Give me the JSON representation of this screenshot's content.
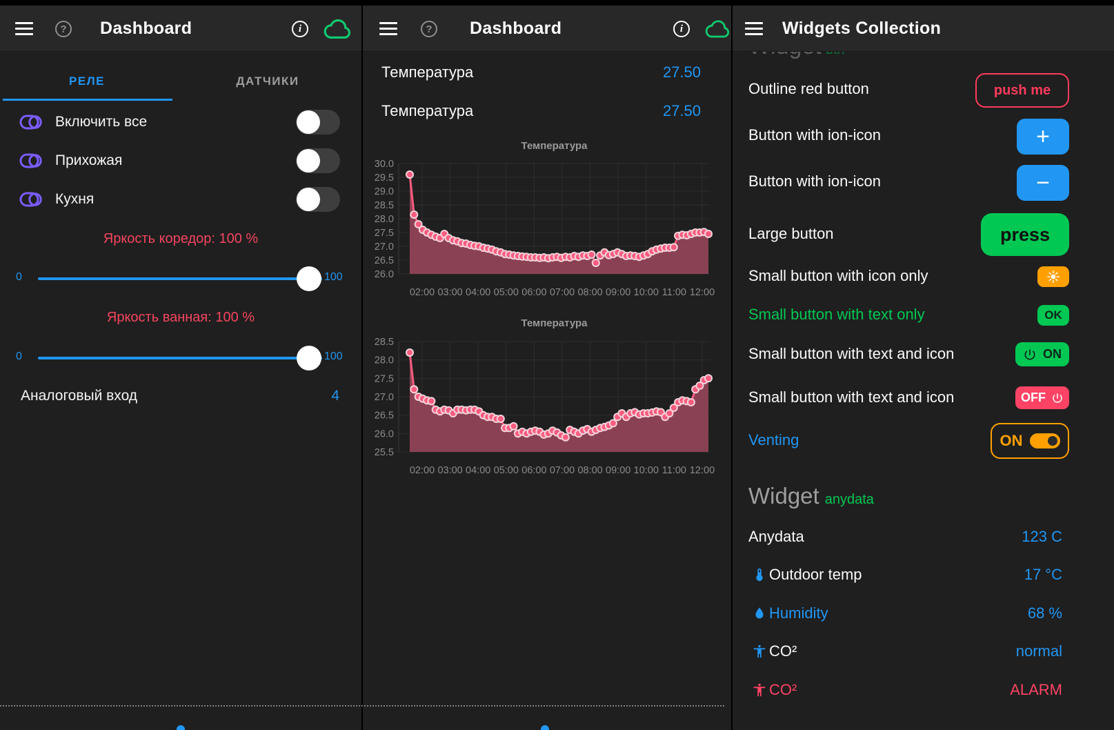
{
  "colors": {
    "accent_blue": "#2196F3",
    "green": "#00C853",
    "red": "#FF3B5C",
    "off_red": "#FF4365",
    "orange": "#FFA000",
    "purple": "#7C5CFF",
    "chart_line": "#FA5C7F",
    "chart_fill": "#8B4154",
    "header_bg": "#282828",
    "body_bg": "#1F1F1F"
  },
  "panel_left": {
    "title": "Dashboard",
    "tabs": [
      {
        "label": "РЕЛЕ"
      },
      {
        "label": "ДАТЧИКИ"
      }
    ],
    "switch_rows": [
      {
        "label": "Включить все"
      },
      {
        "label": "Прихожая"
      },
      {
        "label": "Кухня"
      }
    ],
    "sliders": [
      {
        "label": "Яркость коредор: 100 %",
        "min": "0",
        "max": "100",
        "value": 100
      },
      {
        "label": "Яркость ванная: 100 %",
        "min": "0",
        "max": "100",
        "value": 100
      }
    ],
    "analog_row": {
      "label": "Аналоговый вход",
      "value": "4"
    }
  },
  "panel_middle": {
    "title": "Dashboard",
    "value_rows": [
      {
        "label": "Температура",
        "value": "27.50"
      },
      {
        "label": "Температура",
        "value": "27.50"
      }
    ]
  },
  "chart_data": [
    {
      "type": "line",
      "title": "Температура",
      "xlabel": "",
      "ylabel": "",
      "ylim": [
        26.0,
        30.0
      ],
      "yticks": [
        30.0,
        29.5,
        29.0,
        28.5,
        28.0,
        27.5,
        27.0,
        26.5,
        26.0
      ],
      "xticklabels": [
        "02:00",
        "03:00",
        "04:00",
        "05:00",
        "06:00",
        "07:00",
        "08:00",
        "09:00",
        "10:00",
        "11:00",
        "12:00"
      ],
      "grid": true,
      "legend": "none",
      "line_color": "#FA5C7F",
      "fill_color": "#8B4154",
      "values": [
        29.6,
        28.15,
        27.8,
        27.6,
        27.5,
        27.42,
        27.35,
        27.3,
        27.45,
        27.3,
        27.22,
        27.18,
        27.12,
        27.1,
        27.05,
        27.02,
        27.0,
        26.95,
        26.92,
        26.88,
        26.82,
        26.78,
        26.72,
        26.7,
        26.67,
        26.65,
        26.63,
        26.62,
        26.6,
        26.6,
        26.58,
        26.6,
        26.57,
        26.6,
        26.62,
        26.58,
        26.62,
        26.6,
        26.65,
        26.62,
        26.67,
        26.65,
        26.7,
        26.4,
        26.67,
        26.78,
        26.68,
        26.72,
        26.78,
        26.72,
        26.65,
        26.67,
        26.65,
        26.62,
        26.67,
        26.72,
        26.82,
        26.88,
        26.92,
        26.95,
        26.95,
        26.97,
        27.38,
        27.42,
        27.4,
        27.45,
        27.5,
        27.5,
        27.52,
        27.45
      ]
    },
    {
      "type": "line",
      "title": "Температура",
      "xlabel": "",
      "ylabel": "",
      "ylim": [
        25.5,
        28.5
      ],
      "yticks": [
        28.5,
        28.0,
        27.5,
        27.0,
        26.5,
        26.0,
        25.5
      ],
      "xticklabels": [
        "02:00",
        "03:00",
        "04:00",
        "05:00",
        "06:00",
        "07:00",
        "08:00",
        "09:00",
        "10:00",
        "11:00",
        "12:00"
      ],
      "grid": true,
      "legend": "none",
      "line_color": "#FA5C7F",
      "fill_color": "#8B4154",
      "values": [
        28.2,
        27.2,
        27.0,
        26.95,
        26.9,
        26.88,
        26.65,
        26.6,
        26.65,
        26.63,
        26.55,
        26.65,
        26.65,
        26.63,
        26.65,
        26.65,
        26.6,
        26.5,
        26.45,
        26.45,
        26.4,
        26.4,
        26.15,
        26.15,
        26.2,
        26.0,
        26.05,
        26.0,
        26.05,
        26.08,
        26.05,
        25.97,
        26.0,
        26.08,
        26.03,
        25.95,
        25.9,
        26.1,
        26.05,
        26.0,
        26.08,
        26.12,
        26.05,
        26.1,
        26.15,
        26.18,
        26.22,
        26.28,
        26.45,
        26.55,
        26.45,
        26.55,
        26.58,
        26.52,
        26.55,
        26.55,
        26.57,
        26.6,
        26.58,
        26.45,
        26.55,
        26.7,
        26.85,
        26.9,
        26.88,
        26.85,
        27.2,
        27.3,
        27.45,
        27.5
      ]
    }
  ],
  "panel_right": {
    "title": "Widgets Collection",
    "clipped_heading": {
      "word": "Widget",
      "tag": "btn"
    },
    "rows": [
      {
        "label": "Outline red button",
        "button_text": "push me"
      },
      {
        "label": "Button with ion-icon",
        "button_glyph": "+"
      },
      {
        "label": "Button with ion-icon",
        "button_glyph": "−"
      },
      {
        "label": "Large button",
        "button_text": "press"
      },
      {
        "label": "Small button with icon only",
        "button_icon": "sun"
      },
      {
        "label": "Small button with text only",
        "button_text": "OK"
      },
      {
        "label": "Small button with text and icon",
        "button_text": "ON"
      },
      {
        "label": "Small button with text and icon",
        "button_text": "OFF"
      },
      {
        "label": "Venting",
        "button_text": "ON"
      }
    ],
    "widget_heading": {
      "word": "Widget",
      "tag": "anydata"
    },
    "data_rows": [
      {
        "label": "Anydata",
        "value": "123 C"
      },
      {
        "icon": "thermometer-icon",
        "label": "Outdoor temp",
        "value": "17 °C"
      },
      {
        "icon": "droplet-icon",
        "label": "Humidity",
        "value": "68 %"
      },
      {
        "icon": "person-icon",
        "label": "CO²",
        "value": "normal"
      },
      {
        "icon": "person-icon",
        "label": "CO²",
        "value": "ALARM"
      }
    ]
  }
}
